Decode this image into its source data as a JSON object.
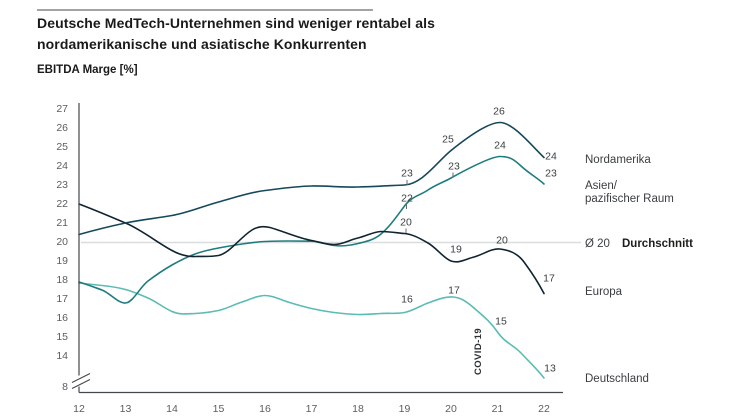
{
  "page": {
    "title_line1": "Deutsche MedTech-Unternehmen sind weniger rentabel als",
    "title_line2": "nordamerikanische und asiatische Konkurrenten",
    "y_axis_title": "EBITDA Marge [%]"
  },
  "legend": {
    "nordamerika": "Nordamerika",
    "asien_line1": "Asien/",
    "asien_line2": "pazifischer Raum",
    "average_value": "Ø 20",
    "average_label": "Durchschnitt",
    "europa": "Europa",
    "deutschland": "Deutschland"
  },
  "chart_data": {
    "type": "line",
    "title": "Deutsche MedTech-Unternehmen sind weniger rentabel als nordamerikanische und asiatische Konkurrenten",
    "ylabel": "EBITDA Marge [%]",
    "x": [
      12,
      13,
      14,
      15,
      16,
      17,
      18,
      19,
      20,
      21,
      22
    ],
    "x_ticks": [
      "12",
      "13",
      "14",
      "15",
      "16",
      "17",
      "18",
      "19",
      "20",
      "21",
      "22"
    ],
    "y_ticks": [
      "27",
      "26",
      "25",
      "24",
      "23",
      "22",
      "21",
      "20",
      "19",
      "18",
      "17",
      "16",
      "15",
      "14"
    ],
    "y_break_tick": "8",
    "axis_break": true,
    "ylim_main": [
      14,
      27
    ],
    "grid": "off",
    "legend_position": "right",
    "series": [
      {
        "name": "Nordamerika",
        "color": "#14485a",
        "values": [
          20.4,
          21,
          21.4,
          22.1,
          22.7,
          23,
          23,
          23,
          25,
          26,
          24
        ]
      },
      {
        "name": "Asien/pazifischer Raum",
        "color": "#1e7c7e",
        "values": [
          17.9,
          16.8,
          18.8,
          19.7,
          20,
          20,
          19.9,
          22,
          23,
          24,
          23
        ]
      },
      {
        "name": "Europa",
        "color": "#0f2430",
        "values": [
          22,
          21,
          19.5,
          19.3,
          20.7,
          20.1,
          20.2,
          20,
          19,
          20,
          17
        ]
      },
      {
        "name": "Deutschland",
        "color": "#5abcb4",
        "values": [
          17.9,
          17.5,
          16.4,
          16.5,
          17.2,
          16.5,
          16.2,
          16,
          17,
          15,
          13
        ]
      }
    ],
    "average_line": {
      "value": 20,
      "label": "Ø 20",
      "label_name": "Durchschnitt",
      "color": "#d9dddd"
    },
    "point_labels": {
      "nordamerika": [
        "23",
        "25",
        "26",
        "24"
      ],
      "asien": [
        "22",
        "23",
        "24",
        "23"
      ],
      "europa": [
        "20",
        "19",
        "20",
        "17"
      ],
      "deutschland": [
        "16",
        "17",
        "15",
        "13"
      ]
    },
    "annotation": "COVID-19"
  }
}
